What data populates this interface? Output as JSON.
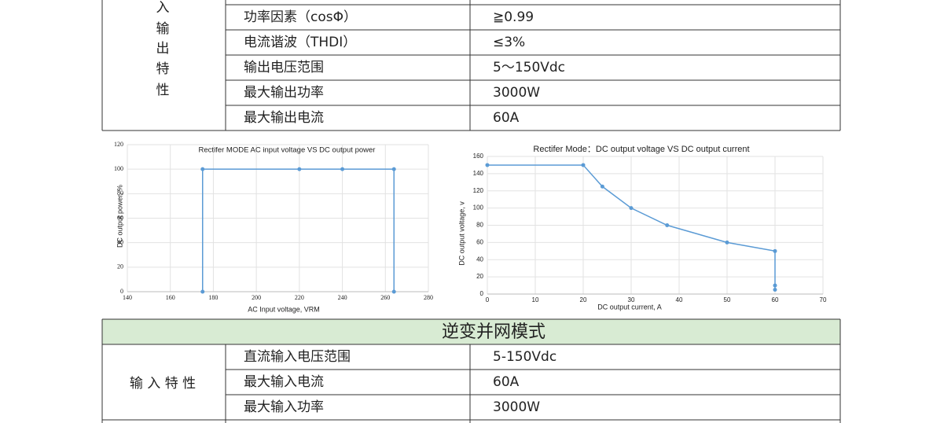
{
  "table_top": {
    "group_label": [
      "入",
      "输",
      "出",
      "特",
      "性"
    ],
    "rows": [
      [
        "功率因素（cosΦ）",
        "≧0.99"
      ],
      [
        "电流谐波（THDI）",
        "≤3%"
      ],
      [
        "输出电压范围",
        "5～150Vdc"
      ],
      [
        "最大输出功率",
        "3000W"
      ],
      [
        "最大输出电流",
        "60A"
      ]
    ]
  },
  "chart_data": [
    {
      "type": "line",
      "title": "Rectifer MODE AC input voltage VS  DC output power",
      "x_label": "AC Input  voltage, VRM",
      "y_label": "DC output power, %",
      "x": [
        175,
        175,
        220,
        240,
        264,
        264
      ],
      "values": [
        0,
        100,
        100,
        100,
        100,
        0
      ],
      "color": "#5b9bd5",
      "xlim": [
        140,
        280
      ],
      "xticks": [
        140,
        160,
        180,
        200,
        220,
        240,
        260,
        280
      ],
      "ylim": [
        0,
        120
      ],
      "yticks": [
        0,
        20,
        40,
        60,
        80,
        100,
        120
      ],
      "grid": true
    },
    {
      "type": "line",
      "title": "Rectifer Mode：DC output voltage VS  DC output current",
      "x_label": "DC output current, A",
      "y_label": "DC output voltage, v",
      "x": [
        0,
        20,
        24,
        30,
        37.5,
        50,
        60,
        60,
        60
      ],
      "values": [
        150,
        150,
        125,
        100,
        80,
        60,
        50,
        10,
        5
      ],
      "color": "#5b9bd5",
      "xlim": [
        0,
        70
      ],
      "xticks": [
        0,
        10,
        20,
        30,
        40,
        50,
        60,
        70
      ],
      "ylim": [
        0,
        160
      ],
      "yticks": [
        0,
        20,
        40,
        60,
        80,
        100,
        120,
        140,
        160
      ],
      "grid": true
    }
  ],
  "table_bottom": {
    "header": "逆变并网模式",
    "group_label": "输 入 特 性",
    "rows": [
      [
        "直流输入电压范围",
        "5-150Vdc"
      ],
      [
        "最大输入电流",
        "60A"
      ],
      [
        "最大输入功率",
        "3000W"
      ]
    ]
  }
}
